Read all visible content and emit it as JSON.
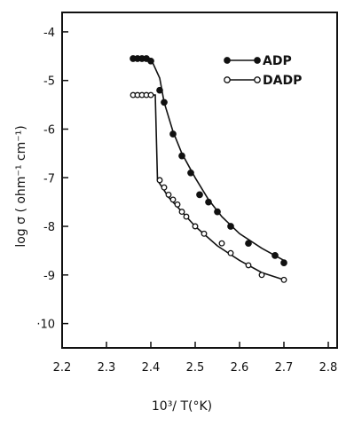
{
  "chart_data": {
    "type": "scatter",
    "xlabel": "10³/ T(°K)",
    "ylabel": "log σ ( ohm⁻¹ cm⁻¹)",
    "xlim": [
      2.2,
      2.82
    ],
    "ylim": [
      -10.5,
      -3.6
    ],
    "x_ticks": [
      2.2,
      2.3,
      2.4,
      2.5,
      2.6,
      2.7,
      2.8
    ],
    "x_tick_labels": [
      "2.2",
      "2.3",
      "2.4",
      "2.5",
      "2.6",
      "2.7",
      "2.8"
    ],
    "y_ticks": [
      -4,
      -5,
      -6,
      -7,
      -8,
      -9,
      -10
    ],
    "y_tick_labels": [
      "-4",
      "-5",
      "-6",
      "-7",
      "-8",
      "-9",
      "·10"
    ],
    "legend": "top-right",
    "grid": false,
    "series": [
      {
        "name": "ADP",
        "marker": "filled-circle",
        "color": "#111111",
        "points": [
          [
            2.36,
            -4.55
          ],
          [
            2.37,
            -4.55
          ],
          [
            2.38,
            -4.55
          ],
          [
            2.39,
            -4.55
          ],
          [
            2.4,
            -4.6
          ],
          [
            2.42,
            -5.2
          ],
          [
            2.43,
            -5.45
          ],
          [
            2.45,
            -6.1
          ],
          [
            2.47,
            -6.55
          ],
          [
            2.49,
            -6.9
          ],
          [
            2.51,
            -7.35
          ],
          [
            2.53,
            -7.5
          ],
          [
            2.55,
            -7.7
          ],
          [
            2.58,
            -8.0
          ],
          [
            2.62,
            -8.35
          ],
          [
            2.68,
            -8.6
          ],
          [
            2.7,
            -8.75
          ]
        ],
        "curve": [
          [
            2.36,
            -4.55
          ],
          [
            2.4,
            -4.55
          ],
          [
            2.42,
            -4.95
          ],
          [
            2.43,
            -5.45
          ],
          [
            2.45,
            -6.05
          ],
          [
            2.47,
            -6.5
          ],
          [
            2.5,
            -7.0
          ],
          [
            2.53,
            -7.45
          ],
          [
            2.56,
            -7.8
          ],
          [
            2.6,
            -8.15
          ],
          [
            2.65,
            -8.45
          ],
          [
            2.7,
            -8.7
          ]
        ]
      },
      {
        "name": "DADP",
        "marker": "open-circle",
        "color": "#111111",
        "points": [
          [
            2.36,
            -5.3
          ],
          [
            2.37,
            -5.3
          ],
          [
            2.38,
            -5.3
          ],
          [
            2.39,
            -5.3
          ],
          [
            2.4,
            -5.3
          ],
          [
            2.42,
            -7.05
          ],
          [
            2.43,
            -7.2
          ],
          [
            2.44,
            -7.35
          ],
          [
            2.45,
            -7.45
          ],
          [
            2.46,
            -7.55
          ],
          [
            2.47,
            -7.7
          ],
          [
            2.48,
            -7.8
          ],
          [
            2.5,
            -8.0
          ],
          [
            2.52,
            -8.15
          ],
          [
            2.56,
            -8.35
          ],
          [
            2.58,
            -8.55
          ],
          [
            2.62,
            -8.8
          ],
          [
            2.65,
            -9.0
          ],
          [
            2.7,
            -9.1
          ]
        ],
        "curve": [
          [
            2.36,
            -5.3
          ],
          [
            2.41,
            -5.3
          ],
          [
            2.415,
            -7.05
          ],
          [
            2.44,
            -7.4
          ],
          [
            2.47,
            -7.7
          ],
          [
            2.5,
            -8.0
          ],
          [
            2.55,
            -8.4
          ],
          [
            2.6,
            -8.7
          ],
          [
            2.65,
            -8.95
          ],
          [
            2.7,
            -9.1
          ]
        ]
      }
    ]
  }
}
